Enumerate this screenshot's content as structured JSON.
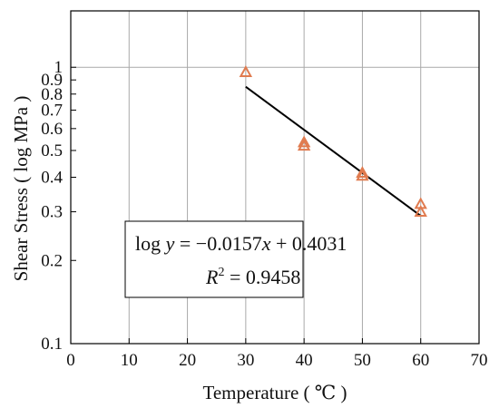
{
  "chart_data": {
    "type": "scatter",
    "title": "",
    "xlabel": "Temperature ( ℃ )",
    "ylabel": "Shear Stress ( log MPa )",
    "xlim": [
      0,
      70
    ],
    "ylim": [
      0.1,
      1.6
    ],
    "yscale": "log",
    "grid": true,
    "x_ticks": [
      0,
      10,
      20,
      30,
      40,
      50,
      60,
      70
    ],
    "x_tick_labels": [
      "0",
      "10",
      "20",
      "30",
      "40",
      "50",
      "60",
      "70"
    ],
    "y_ticks": [
      0.1,
      0.2,
      0.3,
      0.4,
      0.5,
      0.6,
      0.7,
      0.8,
      0.9,
      1
    ],
    "y_tick_labels": [
      "0.1",
      "0.2",
      "0.3",
      "0.4",
      "0.5",
      "0.6",
      "0.7",
      "0.8",
      "0.9",
      "1"
    ],
    "y_grid_lines": [
      0.1,
      1
    ],
    "marker": "open-triangle",
    "marker_color": "#e07b4f",
    "line_color": "#000000",
    "points": [
      {
        "x": 30,
        "y": 0.96
      },
      {
        "x": 40,
        "y": 0.52
      },
      {
        "x": 40,
        "y": 0.535
      },
      {
        "x": 50,
        "y": 0.405
      },
      {
        "x": 50,
        "y": 0.415
      },
      {
        "x": 60,
        "y": 0.3
      },
      {
        "x": 60,
        "y": 0.32
      }
    ],
    "fit_line": {
      "x": [
        30,
        60
      ],
      "y": [
        0.85,
        0.29
      ]
    },
    "annotation": {
      "equation_parts": [
        "log",
        "y",
        " = −0.0157",
        "x",
        " + 0.4031"
      ],
      "r2_parts": [
        "R",
        "2",
        " = 0.9458"
      ]
    }
  }
}
